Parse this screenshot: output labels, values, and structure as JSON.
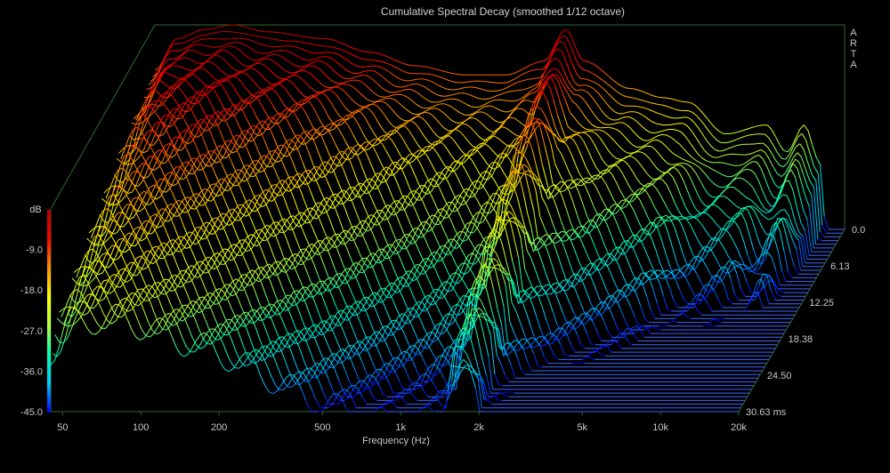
{
  "chart_data": {
    "type": "waterfall",
    "title": "Cumulative Spectral Decay (smoothed 1/12 octave)",
    "watermark": "ARTA",
    "xlabel": "Frequency (Hz)",
    "x_scale": "log",
    "xlim": [
      45,
      20000
    ],
    "x_ticks": [
      {
        "value": 50,
        "label": "50"
      },
      {
        "value": 100,
        "label": "100"
      },
      {
        "value": 200,
        "label": "200"
      },
      {
        "value": 500,
        "label": "500"
      },
      {
        "value": 1000,
        "label": "1k"
      },
      {
        "value": 2000,
        "label": "2k"
      },
      {
        "value": 5000,
        "label": "5k"
      },
      {
        "value": 10000,
        "label": "10k"
      },
      {
        "value": 20000,
        "label": "20k"
      }
    ],
    "ylabel": "dB",
    "ylim": [
      -45,
      0
    ],
    "y_ticks": [
      {
        "value": -9,
        "label": "-9.0"
      },
      {
        "value": -18,
        "label": "-18.0"
      },
      {
        "value": -27,
        "label": "-27.0"
      },
      {
        "value": -36,
        "label": "-36.0"
      },
      {
        "value": -45,
        "label": "-45.0"
      }
    ],
    "z_ticks": [
      {
        "value": 0,
        "label": "0.0"
      },
      {
        "value": 6.13,
        "label": "6.13"
      },
      {
        "value": 12.25,
        "label": "12.25"
      },
      {
        "value": 18.38,
        "label": "18.38"
      },
      {
        "value": 24.5,
        "label": "24.50"
      },
      {
        "value": 30.63,
        "label": "30.63 ms"
      }
    ],
    "zlim": [
      0,
      30.63
    ],
    "slice_count": 50,
    "initial_response": [
      {
        "f": 45,
        "db": -10
      },
      {
        "f": 55,
        "db": -3
      },
      {
        "f": 70,
        "db": -1
      },
      {
        "f": 90,
        "db": 0
      },
      {
        "f": 120,
        "db": -1.5
      },
      {
        "f": 200,
        "db": -3
      },
      {
        "f": 300,
        "db": -6
      },
      {
        "f": 450,
        "db": -9
      },
      {
        "f": 700,
        "db": -11
      },
      {
        "f": 1000,
        "db": -11
      },
      {
        "f": 1400,
        "db": -8
      },
      {
        "f": 1700,
        "db": -1
      },
      {
        "f": 2000,
        "db": -8
      },
      {
        "f": 3000,
        "db": -14
      },
      {
        "f": 4000,
        "db": -16
      },
      {
        "f": 5000,
        "db": -17
      },
      {
        "f": 7000,
        "db": -24
      },
      {
        "f": 10000,
        "db": -22
      },
      {
        "f": 12000,
        "db": -28
      },
      {
        "f": 14000,
        "db": -22
      },
      {
        "f": 16000,
        "db": -30
      },
      {
        "f": 17000,
        "db": -45
      },
      {
        "f": 20000,
        "db": -45
      }
    ],
    "colormap": [
      "#0000ff",
      "#00c8ff",
      "#00ffb4",
      "#b4ff3c",
      "#ffff00",
      "#ff8c00",
      "#ff0000",
      "#b40000"
    ],
    "frame_color": "#2e6a2e",
    "decayed_line_color": "#3c64ff"
  }
}
